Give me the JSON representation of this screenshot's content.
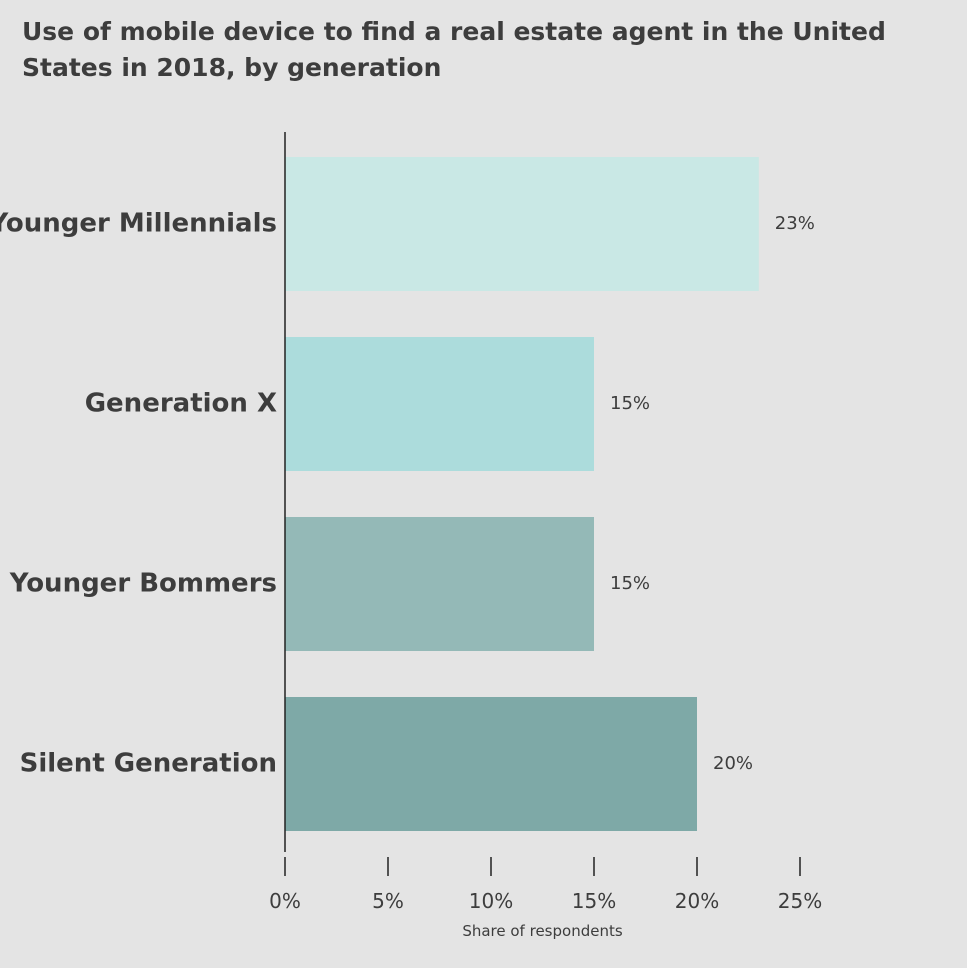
{
  "chart_data": {
    "type": "bar",
    "orientation": "horizontal",
    "title": "Use of mobile device to find a real estate agent in the United States in 2018, by generation",
    "categories": [
      "Younger Millennials",
      "Generation X",
      "Younger Bommers",
      "Silent Generation"
    ],
    "values": [
      23,
      15,
      15,
      20
    ],
    "value_labels": [
      "23%",
      "15%",
      "15%",
      "20%"
    ],
    "colors": [
      "#c9e8e5",
      "#acdcdc",
      "#94b9b7",
      "#7ea9a7"
    ],
    "xlabel": "Share of respondents",
    "ylabel": "",
    "xlim": [
      0,
      25
    ],
    "x_ticks": [
      0,
      5,
      10,
      15,
      20,
      25
    ],
    "x_tick_labels": [
      "0%",
      "5%",
      "10%",
      "15%",
      "20%",
      "25%"
    ],
    "grid": false,
    "legend": "none"
  }
}
